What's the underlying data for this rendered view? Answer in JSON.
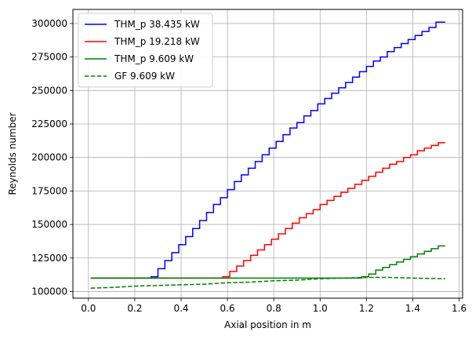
{
  "chart_data": {
    "type": "line",
    "xlabel": "Axial position in m",
    "ylabel": "Reynolds number",
    "xlim": [
      -0.067,
      1.615
    ],
    "ylim": [
      95000,
      310500
    ],
    "xticks": [
      0.0,
      0.2,
      0.4,
      0.6,
      0.8,
      1.0,
      1.2,
      1.4,
      1.6
    ],
    "xtick_labels": [
      "0.0",
      "0.2",
      "0.4",
      "0.6",
      "0.8",
      "1.0",
      "1.2",
      "1.4",
      "1.6"
    ],
    "yticks": [
      100000,
      125000,
      150000,
      175000,
      200000,
      225000,
      250000,
      275000,
      300000
    ],
    "ytick_labels": [
      "100000",
      "125000",
      "150000",
      "175000",
      "200000",
      "225000",
      "250000",
      "275000",
      "300000"
    ],
    "grid": true,
    "legend_position": "top-left",
    "series": [
      {
        "name": "THM_p 38.435 kW",
        "color": "#0000ff",
        "style": "step",
        "x": [
          0.01,
          0.27,
          0.3,
          0.33,
          0.36,
          0.39,
          0.42,
          0.45,
          0.48,
          0.51,
          0.54,
          0.57,
          0.6,
          0.63,
          0.66,
          0.69,
          0.72,
          0.75,
          0.78,
          0.81,
          0.84,
          0.87,
          0.9,
          0.93,
          0.96,
          0.99,
          1.02,
          1.05,
          1.08,
          1.11,
          1.14,
          1.17,
          1.2,
          1.23,
          1.26,
          1.29,
          1.32,
          1.35,
          1.38,
          1.41,
          1.44,
          1.47,
          1.5,
          1.54
        ],
        "y": [
          110000,
          111000,
          117000,
          123000,
          129000,
          135000,
          141000,
          147000,
          153000,
          159000,
          165000,
          170000,
          176000,
          182000,
          187000,
          192000,
          197000,
          202000,
          207000,
          212000,
          217000,
          222000,
          226000,
          231000,
          235000,
          240000,
          244000,
          248000,
          252000,
          256000,
          260000,
          264000,
          268000,
          272000,
          275000,
          279000,
          282000,
          285000,
          288000,
          291000,
          294000,
          297000,
          301000,
          301000
        ]
      },
      {
        "name": "THM_p 19.218 kW",
        "color": "#ff0000",
        "style": "step",
        "x": [
          0.01,
          0.58,
          0.61,
          0.64,
          0.67,
          0.7,
          0.73,
          0.76,
          0.79,
          0.82,
          0.85,
          0.88,
          0.91,
          0.94,
          0.97,
          1.0,
          1.03,
          1.06,
          1.09,
          1.12,
          1.15,
          1.18,
          1.21,
          1.24,
          1.27,
          1.3,
          1.33,
          1.36,
          1.39,
          1.42,
          1.45,
          1.48,
          1.51,
          1.54
        ],
        "y": [
          110000,
          111000,
          115000,
          119000,
          123000,
          127000,
          131000,
          135000,
          139000,
          143000,
          147000,
          151000,
          155000,
          158000,
          161000,
          165000,
          168000,
          171000,
          174000,
          177000,
          180000,
          183000,
          186000,
          189000,
          192000,
          195000,
          197000,
          200000,
          202000,
          205000,
          207000,
          209000,
          211000,
          211000
        ]
      },
      {
        "name": "THM_p 9.609 kW",
        "color": "#008000",
        "style": "step",
        "x": [
          0.01,
          1.18,
          1.21,
          1.24,
          1.27,
          1.3,
          1.33,
          1.36,
          1.39,
          1.42,
          1.45,
          1.48,
          1.51,
          1.54
        ],
        "y": [
          110000,
          111000,
          113000,
          116000,
          118000,
          120000,
          122000,
          124000,
          126000,
          128000,
          130000,
          132000,
          134000,
          134000
        ]
      },
      {
        "name": "GF 9.609 kW",
        "color": "#008000",
        "style": "dashed",
        "x": [
          0.01,
          0.1,
          0.2,
          0.3,
          0.4,
          0.5,
          0.6,
          0.7,
          0.8,
          0.9,
          1.0,
          1.1,
          1.2,
          1.3,
          1.4,
          1.54
        ],
        "y": [
          102500,
          103000,
          104000,
          104500,
          105000,
          105500,
          106500,
          107000,
          108000,
          108500,
          109500,
          110000,
          110500,
          110500,
          110000,
          109500
        ]
      }
    ]
  }
}
